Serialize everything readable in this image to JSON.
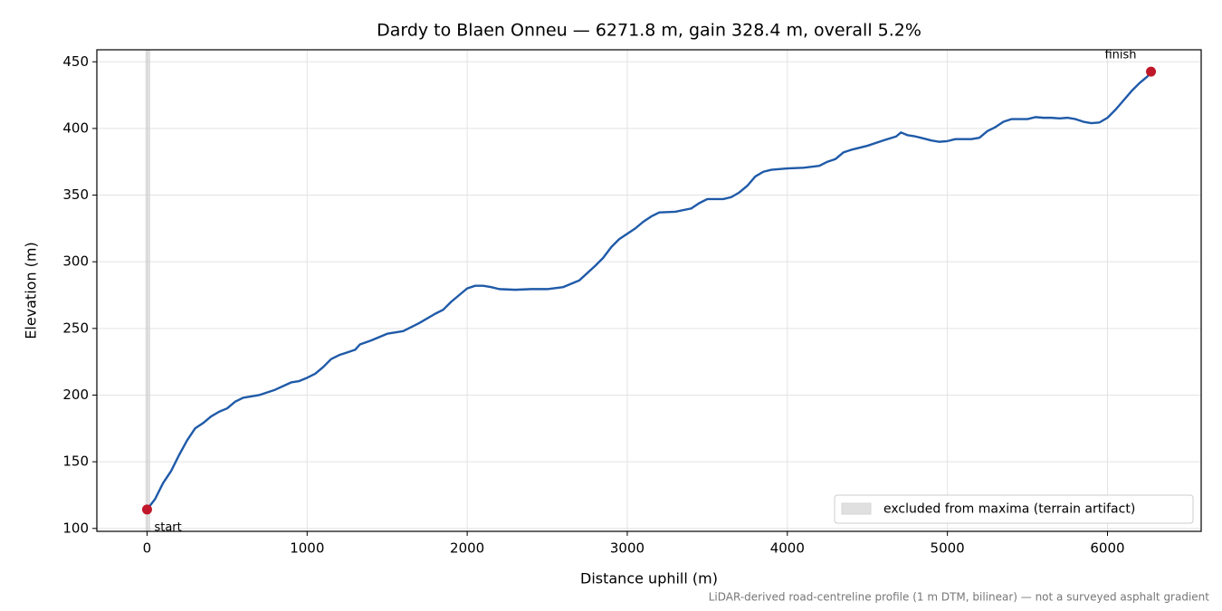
{
  "chart_data": {
    "type": "line",
    "title": "Dardy to Blaen Onneu — 6271.8 m, gain 328.4 m, overall 5.2%",
    "xlabel": "Distance uphill (m)",
    "ylabel": "Elevation (m)",
    "note": "LiDAR-derived road-centreline profile (1 m DTM, bilinear) — not a surveyed asphalt gradient",
    "x": [
      0,
      50,
      100,
      150,
      200,
      250,
      300,
      350,
      400,
      450,
      500,
      550,
      600,
      700,
      800,
      900,
      950,
      1000,
      1050,
      1100,
      1150,
      1200,
      1250,
      1300,
      1330,
      1400,
      1500,
      1600,
      1700,
      1800,
      1850,
      1900,
      1950,
      2000,
      2050,
      2100,
      2150,
      2200,
      2300,
      2400,
      2500,
      2600,
      2700,
      2800,
      2850,
      2900,
      2950,
      3000,
      3050,
      3100,
      3150,
      3200,
      3300,
      3400,
      3450,
      3500,
      3600,
      3650,
      3700,
      3750,
      3800,
      3850,
      3900,
      4000,
      4100,
      4200,
      4250,
      4300,
      4350,
      4400,
      4500,
      4600,
      4680,
      4710,
      4750,
      4800,
      4900,
      4950,
      5000,
      5050,
      5100,
      5150,
      5200,
      5250,
      5300,
      5350,
      5400,
      5450,
      5500,
      5550,
      5600,
      5650,
      5700,
      5750,
      5800,
      5850,
      5900,
      5950,
      6000,
      6050,
      6100,
      6150,
      6200,
      6250,
      6271.8
    ],
    "values": [
      114.2,
      122,
      134,
      143,
      155,
      166,
      175,
      179,
      184,
      187.5,
      190,
      195,
      198,
      200,
      204,
      209.5,
      210.5,
      213,
      216,
      221,
      227,
      230,
      232,
      234,
      238,
      241,
      246,
      248,
      254,
      261,
      264,
      270,
      275,
      280,
      282,
      282,
      281,
      279.5,
      279,
      279.5,
      279.5,
      281,
      286,
      297,
      303,
      311,
      317,
      321,
      325,
      330,
      334,
      337,
      337.5,
      340,
      344,
      347,
      347,
      348.5,
      352,
      357,
      364,
      367.5,
      369,
      370,
      370.5,
      372,
      375,
      377,
      382,
      384,
      387,
      391,
      394,
      397,
      395,
      394,
      391,
      390,
      390.5,
      392,
      392,
      392,
      393,
      398,
      401,
      405,
      407,
      407,
      407,
      408.5,
      408,
      408,
      407.5,
      408,
      407,
      405,
      404,
      404.5,
      408,
      414,
      421,
      428,
      434,
      439,
      442.6
    ],
    "color": "#1f5aa8",
    "marker_color": "#c0182a",
    "start_label": "start",
    "finish_label": "finish",
    "excluded": {
      "x": [
        -10,
        20
      ],
      "label": "excluded from maxima (terrain artifact)",
      "color": "#cccccc"
    },
    "legend": "lower right",
    "xlim": [
      -313.6,
      6585.4
    ],
    "ylim": [
      97.8,
      459.0
    ],
    "xticks": [
      0,
      1000,
      2000,
      3000,
      4000,
      5000,
      6000
    ],
    "yticks": [
      100,
      150,
      200,
      250,
      300,
      350,
      400,
      450
    ],
    "grid": true
  }
}
